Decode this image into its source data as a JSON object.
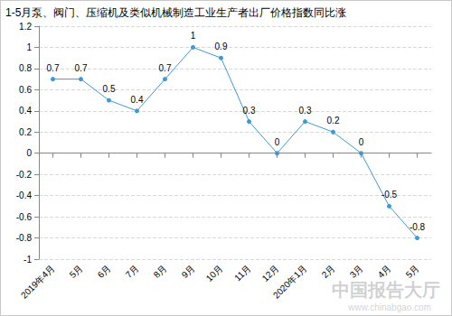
{
  "chart_data": {
    "type": "line",
    "title": "1-5月泵、阀门、压缩机及类似机械制造工业生产者出厂价格指数同比涨",
    "annotations": [
      "中国报告大厅",
      "www.chinabgao.com"
    ],
    "categories": [
      "2019年4月",
      "5月",
      "6月",
      "7月",
      "8月",
      "9月",
      "10月",
      "11月",
      "12月",
      "2020年1月",
      "2月",
      "3月",
      "4月",
      "5月"
    ],
    "values": [
      0.7,
      0.7,
      0.5,
      0.4,
      0.7,
      1,
      0.9,
      0.3,
      0,
      0.3,
      0.2,
      0,
      -0.5,
      -0.8
    ],
    "color": "#3c9ad8",
    "ylim": [
      -1,
      1.2
    ],
    "yticks": [
      -1,
      -0.8,
      -0.6,
      -0.4,
      -0.2,
      0,
      0.2,
      0.4,
      0.6,
      0.8,
      1,
      1.2
    ],
    "grid": true,
    "data_labels": true,
    "marker": "circle"
  }
}
